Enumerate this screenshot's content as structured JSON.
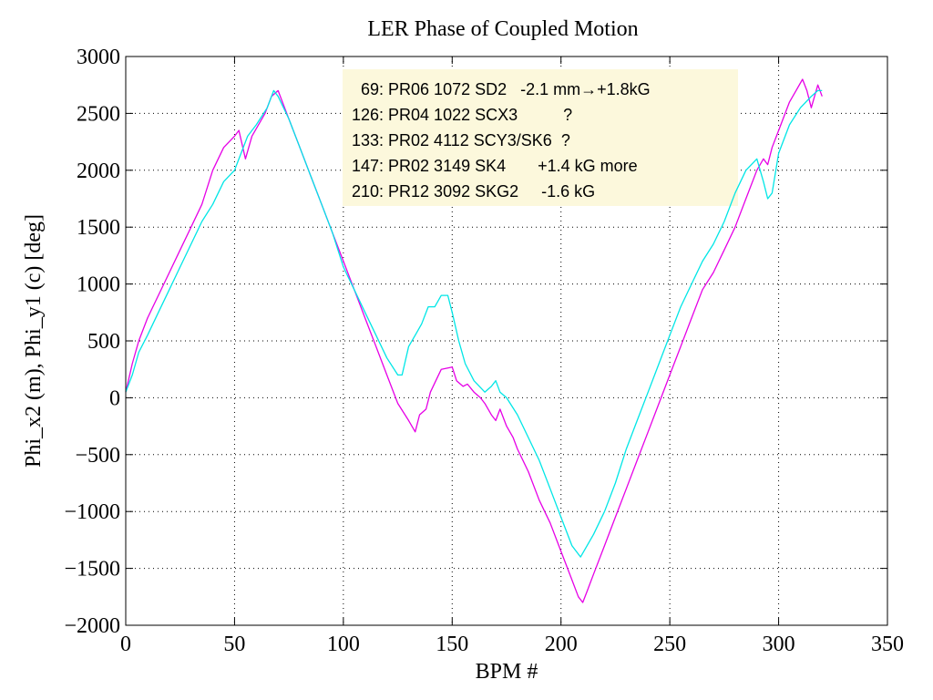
{
  "chart_data": {
    "type": "line",
    "title": "LER Phase of Coupled Motion",
    "xlabel": "BPM #",
    "ylabel": "Phi_x2 (m), Phi_y1 (c) [deg]",
    "xlim": [
      0,
      350
    ],
    "ylim": [
      -2000,
      3000
    ],
    "x_ticks": [
      0,
      50,
      100,
      150,
      200,
      250,
      300,
      350
    ],
    "y_ticks": [
      -2000,
      -1500,
      -1000,
      -500,
      0,
      500,
      1000,
      1500,
      2000,
      2500,
      3000
    ],
    "x_tick_labels": [
      "0",
      "50",
      "100",
      "150",
      "200",
      "250",
      "300",
      "350"
    ],
    "y_tick_labels": [
      "−2000",
      "−1500",
      "−1000",
      "−500",
      "0",
      "500",
      "1000",
      "1500",
      "2000",
      "2500",
      "3000"
    ],
    "grid": true,
    "background": "#ffffff",
    "series": [
      {
        "color": "#e600e6",
        "x": [
          0,
          3,
          6,
          10,
          15,
          20,
          25,
          30,
          35,
          40,
          45,
          50,
          52,
          55,
          58,
          61,
          64,
          67,
          70,
          75,
          80,
          85,
          90,
          95,
          100,
          105,
          110,
          115,
          120,
          125,
          130,
          133,
          135,
          138,
          140,
          145,
          150,
          152,
          155,
          157,
          160,
          163,
          165,
          168,
          170,
          172,
          175,
          178,
          180,
          185,
          190,
          195,
          200,
          205,
          208,
          210,
          212,
          215,
          220,
          225,
          230,
          235,
          240,
          245,
          250,
          255,
          260,
          265,
          270,
          275,
          280,
          285,
          290,
          293,
          295,
          297,
          300,
          305,
          308,
          311,
          313,
          315,
          318,
          320
        ],
        "y": [
          50,
          300,
          500,
          700,
          900,
          1100,
          1300,
          1500,
          1700,
          2000,
          2200,
          2300,
          2350,
          2100,
          2300,
          2400,
          2500,
          2650,
          2700,
          2450,
          2200,
          1950,
          1700,
          1450,
          1200,
          950,
          700,
          450,
          200,
          -50,
          -200,
          -300,
          -150,
          -100,
          50,
          250,
          270,
          150,
          100,
          120,
          50,
          0,
          -50,
          -150,
          -200,
          -100,
          -250,
          -350,
          -450,
          -650,
          -900,
          -1100,
          -1350,
          -1600,
          -1750,
          -1800,
          -1700,
          -1550,
          -1300,
          -1050,
          -800,
          -550,
          -300,
          -50,
          200,
          450,
          700,
          950,
          1100,
          1300,
          1500,
          1750,
          2000,
          2100,
          2050,
          2200,
          2350,
          2600,
          2700,
          2800,
          2700,
          2550,
          2750,
          2650
        ]
      },
      {
        "color": "#00e6e6",
        "x": [
          0,
          3,
          6,
          10,
          15,
          20,
          25,
          30,
          35,
          40,
          45,
          50,
          53,
          56,
          60,
          65,
          68,
          70,
          75,
          80,
          85,
          90,
          95,
          100,
          105,
          110,
          115,
          120,
          125,
          127,
          130,
          133,
          136,
          139,
          142,
          145,
          148,
          150,
          153,
          156,
          160,
          165,
          168,
          170,
          172,
          175,
          180,
          185,
          190,
          195,
          200,
          205,
          209,
          212,
          215,
          220,
          225,
          230,
          235,
          240,
          245,
          250,
          255,
          260,
          265,
          270,
          275,
          280,
          285,
          290,
          293,
          295,
          297,
          300,
          305,
          310,
          315,
          318,
          320
        ],
        "y": [
          50,
          200,
          400,
          550,
          750,
          950,
          1150,
          1350,
          1550,
          1700,
          1900,
          2000,
          2150,
          2300,
          2400,
          2550,
          2700,
          2650,
          2450,
          2200,
          1950,
          1700,
          1450,
          1150,
          950,
          750,
          550,
          350,
          200,
          200,
          450,
          550,
          650,
          800,
          800,
          900,
          900,
          750,
          500,
          300,
          150,
          50,
          100,
          150,
          50,
          0,
          -150,
          -350,
          -550,
          -800,
          -1050,
          -1300,
          -1400,
          -1300,
          -1200,
          -1000,
          -750,
          -450,
          -200,
          50,
          300,
          550,
          800,
          1000,
          1200,
          1350,
          1550,
          1800,
          2000,
          2100,
          1900,
          1750,
          1800,
          2150,
          2400,
          2550,
          2650,
          2700,
          2700
        ]
      }
    ],
    "annotation": {
      "background": "#fcf8dc",
      "lines": [
        "  69: PR06 1072 SD2   -2.1 mm→+1.8kG",
        "126: PR04 1022 SCX3          ?",
        "133: PR02 4112 SCY3/SK6  ?",
        "147: PR02 3149 SK4       +1.4 kG more",
        "210: PR12 3092 SKG2     -1.6 kG"
      ]
    }
  }
}
